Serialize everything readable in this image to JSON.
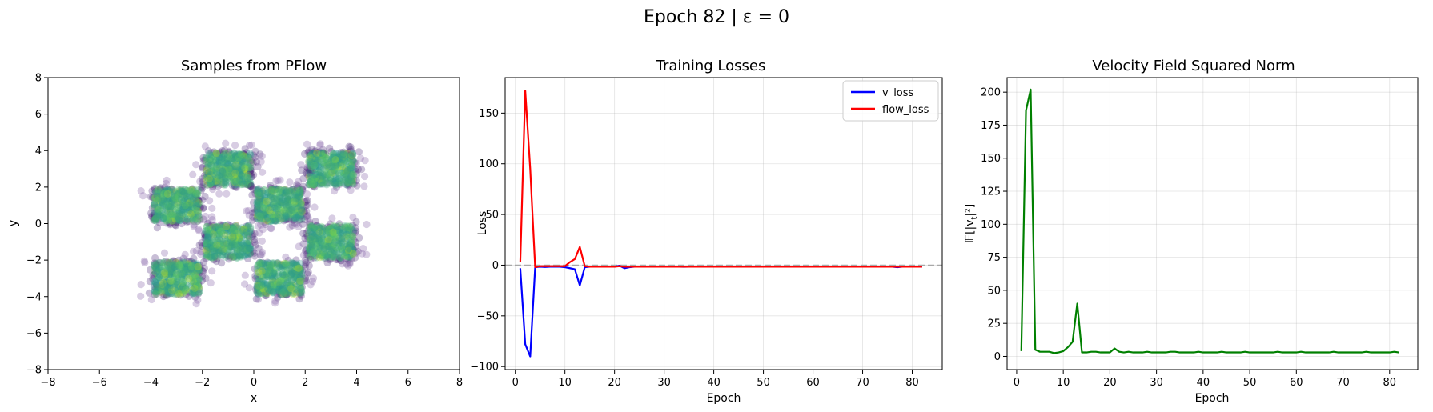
{
  "figure": {
    "suptitle": "Epoch 82 | ε = 0"
  },
  "chart_data": [
    {
      "type": "scatter",
      "title": "Samples from PFlow",
      "xlabel": "x",
      "ylabel": "y",
      "xlim": [
        -8,
        8
      ],
      "ylim": [
        -8,
        8
      ],
      "xticks": [
        -8,
        -6,
        -4,
        -2,
        0,
        2,
        4,
        6,
        8
      ],
      "yticks": [
        -8,
        -6,
        -4,
        -2,
        0,
        2,
        4,
        6,
        8
      ],
      "grid": false,
      "colormap": "viridis",
      "point_alpha": 0.3,
      "clusters": [
        {
          "x_range": [
            -4,
            -2
          ],
          "y_range": [
            0,
            2
          ]
        },
        {
          "x_range": [
            -2,
            0
          ],
          "y_range": [
            2,
            4
          ]
        },
        {
          "x_range": [
            0,
            2
          ],
          "y_range": [
            0,
            2
          ]
        },
        {
          "x_range": [
            2,
            4
          ],
          "y_range": [
            2,
            4
          ]
        },
        {
          "x_range": [
            -2,
            0
          ],
          "y_range": [
            -2,
            0
          ]
        },
        {
          "x_range": [
            2,
            4
          ],
          "y_range": [
            -2,
            0
          ]
        },
        {
          "x_range": [
            -4,
            -2
          ],
          "y_range": [
            -4,
            -2
          ]
        },
        {
          "x_range": [
            0,
            2
          ],
          "y_range": [
            -4,
            -2
          ]
        }
      ],
      "edge_color": "#482878",
      "core_color": "#3aa57a",
      "highlight_color": "#bddf26"
    },
    {
      "type": "line",
      "title": "Training Losses",
      "xlabel": "Epoch",
      "ylabel": "Loss",
      "xlim": [
        -2.05,
        86.05
      ],
      "ylim": [
        -103,
        185
      ],
      "xticks": [
        0,
        10,
        20,
        30,
        40,
        50,
        60,
        70,
        80
      ],
      "yticks": [
        -100,
        -50,
        0,
        50,
        100,
        150
      ],
      "grid": true,
      "legend_position": "top-right",
      "reference_line": {
        "y": 0,
        "color": "#999999",
        "style": "dashed"
      },
      "x": [
        1,
        2,
        3,
        4,
        5,
        6,
        7,
        8,
        9,
        10,
        11,
        12,
        13,
        14,
        15,
        16,
        17,
        18,
        19,
        20,
        21,
        22,
        23,
        24,
        25,
        26,
        27,
        28,
        29,
        30,
        31,
        32,
        33,
        34,
        35,
        36,
        37,
        38,
        39,
        40,
        41,
        42,
        43,
        44,
        45,
        46,
        47,
        48,
        49,
        50,
        51,
        52,
        53,
        54,
        55,
        56,
        57,
        58,
        59,
        60,
        61,
        62,
        63,
        64,
        65,
        66,
        67,
        68,
        69,
        70,
        71,
        72,
        73,
        74,
        75,
        76,
        77,
        78,
        79,
        80,
        81,
        82
      ],
      "series": [
        {
          "name": "v_loss",
          "color": "#0000ff",
          "values": [
            -3,
            -78,
            -90,
            -2,
            -1.5,
            -1.8,
            -1.5,
            -1.5,
            -1.5,
            -2,
            -3,
            -4,
            -20,
            -2,
            -1.5,
            -1.5,
            -1.5,
            -1.5,
            -1.5,
            -1.5,
            -0.5,
            -3,
            -2,
            -1.5,
            -1.5,
            -1.5,
            -1.5,
            -1.5,
            -1.5,
            -1.5,
            -1.5,
            -1.5,
            -1.5,
            -1.6,
            -1.5,
            -1.5,
            -1.5,
            -1.5,
            -1.5,
            -1.5,
            -1.5,
            -1.5,
            -1.5,
            -1.5,
            -1.5,
            -1.5,
            -1.5,
            -1.5,
            -1.5,
            -1.5,
            -1.5,
            -1.5,
            -1.5,
            -1.5,
            -1.5,
            -1.5,
            -1.5,
            -1.5,
            -1.5,
            -1.5,
            -1.5,
            -1.5,
            -1.5,
            -1.5,
            -1.5,
            -1.5,
            -1.5,
            -1.5,
            -1.5,
            -1.5,
            -1.5,
            -1.5,
            -1.5,
            -1.5,
            -1.5,
            -1.5,
            -2,
            -1.5,
            -1.5,
            -1.5,
            -1.5,
            -1.5
          ]
        },
        {
          "name": "flow_loss",
          "color": "#ff0000",
          "values": [
            3,
            172,
            95,
            -2,
            -1,
            -1,
            -1,
            -1,
            -1,
            -1,
            3,
            6,
            18,
            -1,
            -1.5,
            -1.5,
            -1.5,
            -1.5,
            -1.5,
            -1.5,
            -1,
            -1.5,
            -1.5,
            -1.5,
            -1.5,
            -1.5,
            -1.5,
            -1.5,
            -1.5,
            -1.5,
            -1.5,
            -1.5,
            -1.5,
            -1.5,
            -1.5,
            -1.5,
            -1.5,
            -1.5,
            -1.5,
            -1.5,
            -1.5,
            -1.5,
            -1.5,
            -1.5,
            -1.5,
            -1.5,
            -1.5,
            -1.5,
            -1.5,
            -1.5,
            -1.5,
            -1.5,
            -1.5,
            -1.5,
            -1.5,
            -1.5,
            -1.5,
            -1.5,
            -1.5,
            -1.5,
            -1.5,
            -1.5,
            -1.5,
            -1.5,
            -1.5,
            -1.5,
            -1.5,
            -1.5,
            -1.5,
            -1.5,
            -1.5,
            -1.5,
            -1.5,
            -1.5,
            -1.5,
            -1.5,
            -1.5,
            -1.5,
            -1.5,
            -1.5,
            -1.5,
            -1.5
          ]
        }
      ]
    },
    {
      "type": "line",
      "title": "Velocity Field Squared Norm",
      "xlabel": "Epoch",
      "ylabel": "𝔼[|v_t|²]",
      "ylabel_base": "𝔼[|v",
      "ylabel_sub": "t",
      "ylabel_end": "|²]",
      "xlim": [
        -2.05,
        86.05
      ],
      "ylim": [
        -10,
        211
      ],
      "xticks": [
        0,
        10,
        20,
        30,
        40,
        50,
        60,
        70,
        80
      ],
      "yticks": [
        0,
        25,
        50,
        75,
        100,
        125,
        150,
        175,
        200
      ],
      "grid": true,
      "x": [
        1,
        2,
        3,
        4,
        5,
        6,
        7,
        8,
        9,
        10,
        11,
        12,
        13,
        14,
        15,
        16,
        17,
        18,
        19,
        20,
        21,
        22,
        23,
        24,
        25,
        26,
        27,
        28,
        29,
        30,
        31,
        32,
        33,
        34,
        35,
        36,
        37,
        38,
        39,
        40,
        41,
        42,
        43,
        44,
        45,
        46,
        47,
        48,
        49,
        50,
        51,
        52,
        53,
        54,
        55,
        56,
        57,
        58,
        59,
        60,
        61,
        62,
        63,
        64,
        65,
        66,
        67,
        68,
        69,
        70,
        71,
        72,
        73,
        74,
        75,
        76,
        77,
        78,
        79,
        80,
        81,
        82
      ],
      "series": [
        {
          "color": "#008000",
          "values": [
            4,
            186,
            202,
            5,
            3.5,
            3.5,
            3.5,
            2.5,
            3,
            4,
            7,
            11,
            40,
            3,
            3,
            3.5,
            3.5,
            3,
            3,
            3,
            6,
            3.5,
            3,
            3.5,
            3,
            3,
            3,
            3.5,
            3,
            3,
            3,
            3,
            3.5,
            3.5,
            3,
            3,
            3,
            3,
            3.5,
            3,
            3,
            3,
            3,
            3.5,
            3,
            3,
            3,
            3,
            3.5,
            3,
            3,
            3,
            3,
            3,
            3,
            3.5,
            3,
            3,
            3,
            3,
            3.5,
            3,
            3,
            3,
            3,
            3,
            3,
            3.5,
            3,
            3,
            3,
            3,
            3,
            3,
            3.5,
            3,
            3,
            3,
            3,
            3,
            3.5,
            3
          ]
        }
      ]
    }
  ]
}
